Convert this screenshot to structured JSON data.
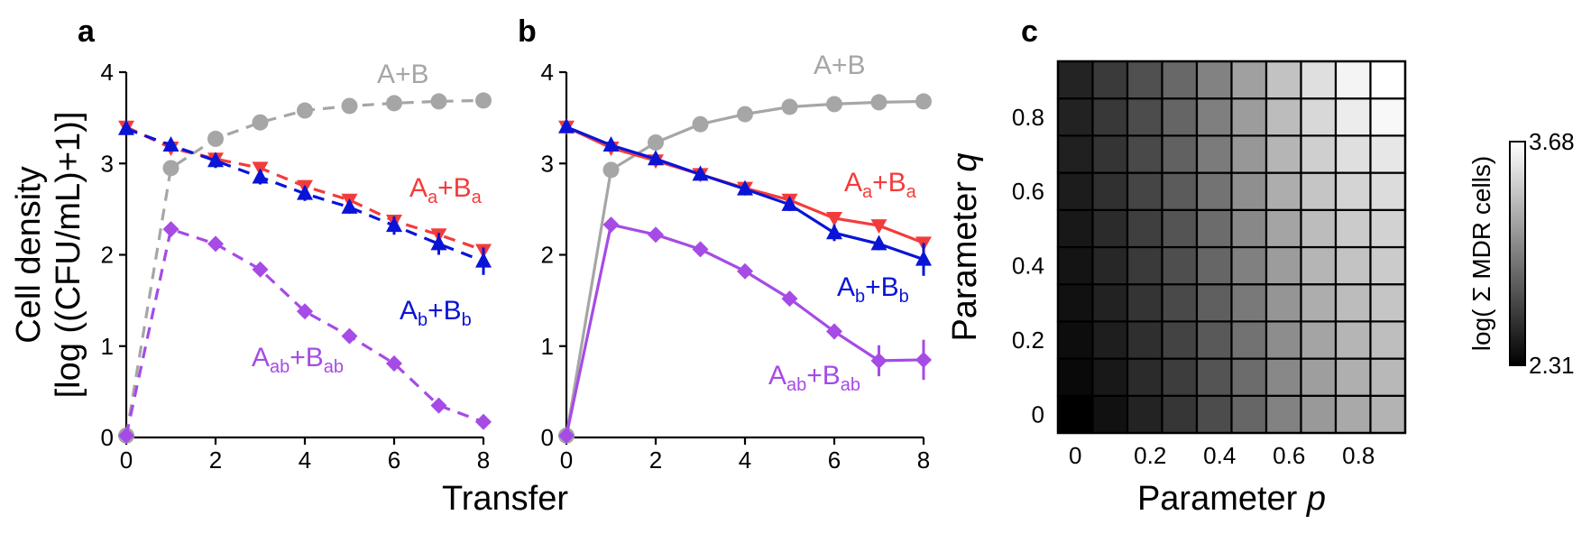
{
  "chart_data": [
    {
      "panel": "a",
      "type": "line",
      "line_style": "dashed",
      "xlabel": "Transfer",
      "ylabel": [
        "Cell density",
        "[log ((CFU/mL)+1)]"
      ],
      "xlim": [
        0,
        8
      ],
      "ylim": [
        0,
        4
      ],
      "xticks": [
        "0",
        "2",
        "4",
        "6",
        "8"
      ],
      "yticks": [
        "0",
        "1",
        "2",
        "3",
        "4"
      ],
      "x": [
        0,
        1,
        2,
        3,
        4,
        5,
        6,
        7,
        8
      ],
      "series": [
        {
          "name": "A+B",
          "base": "A+B",
          "s1": "",
          "mid": "",
          "s2": "",
          "color": "#a6a6a6",
          "marker": "circle",
          "values": [
            0.02,
            2.95,
            3.27,
            3.45,
            3.58,
            3.63,
            3.66,
            3.68,
            3.69
          ],
          "err": [
            0,
            0,
            0,
            0,
            0,
            0,
            0,
            0,
            0
          ]
        },
        {
          "name": "Aa+Ba",
          "base": "A",
          "s1": "a",
          "mid": "+B",
          "s2": "a",
          "color": "#f23c3c",
          "marker": "triangle-down",
          "values": [
            3.4,
            3.17,
            3.05,
            2.95,
            2.75,
            2.6,
            2.37,
            2.22,
            2.05
          ],
          "err": [
            0,
            0,
            0,
            0,
            0,
            0,
            0,
            0,
            0
          ]
        },
        {
          "name": "Ab+Bb",
          "base": "A",
          "s1": "b",
          "mid": "+B",
          "s2": "b",
          "color": "#0a14d6",
          "marker": "triangle-up",
          "values": [
            3.38,
            3.2,
            3.03,
            2.85,
            2.67,
            2.52,
            2.32,
            2.12,
            1.93
          ],
          "err": [
            0,
            0.06,
            0.08,
            0.08,
            0.08,
            0.07,
            0.1,
            0.12,
            0.15
          ]
        },
        {
          "name": "Aab+Bab",
          "base": "A",
          "s1": "ab",
          "mid": "+B",
          "s2": "ab",
          "color": "#a64be6",
          "marker": "diamond",
          "values": [
            0.02,
            2.28,
            2.12,
            1.84,
            1.38,
            1.11,
            0.81,
            0.35,
            0.17
          ],
          "err": [
            0,
            0,
            0,
            0,
            0,
            0,
            0.08,
            0,
            0
          ]
        }
      ]
    },
    {
      "panel": "b",
      "type": "line",
      "line_style": "solid",
      "xlim": [
        0,
        8
      ],
      "ylim": [
        0,
        4
      ],
      "xticks": [
        "0",
        "2",
        "4",
        "6",
        "8"
      ],
      "yticks": [
        "0",
        "1",
        "2",
        "3",
        "4"
      ],
      "x": [
        0,
        1,
        2,
        3,
        4,
        5,
        6,
        7,
        8
      ],
      "series": [
        {
          "name": "A+B",
          "base": "A+B",
          "s1": "",
          "mid": "",
          "s2": "",
          "color": "#a6a6a6",
          "marker": "circle",
          "values": [
            0.02,
            2.93,
            3.23,
            3.43,
            3.54,
            3.62,
            3.65,
            3.67,
            3.68
          ],
          "err": [
            0,
            0,
            0,
            0,
            0,
            0,
            0,
            0,
            0
          ]
        },
        {
          "name": "Aa+Ba",
          "base": "A",
          "s1": "a",
          "mid": "+B",
          "s2": "a",
          "color": "#f23c3c",
          "marker": "triangle-down",
          "values": [
            3.4,
            3.17,
            3.03,
            2.88,
            2.73,
            2.6,
            2.4,
            2.32,
            2.13
          ],
          "err": [
            0,
            0,
            0,
            0,
            0,
            0,
            0,
            0.05,
            0
          ]
        },
        {
          "name": "Ab+Bb",
          "base": "A",
          "s1": "b",
          "mid": "+B",
          "s2": "b",
          "color": "#0a14d6",
          "marker": "triangle-up",
          "values": [
            3.4,
            3.2,
            3.05,
            2.88,
            2.72,
            2.55,
            2.24,
            2.12,
            1.95
          ],
          "err": [
            0,
            0,
            0,
            0,
            0,
            0.07,
            0.09,
            0.07,
            0.18
          ]
        },
        {
          "name": "Aab+Bab",
          "base": "A",
          "s1": "ab",
          "mid": "+B",
          "s2": "ab",
          "color": "#a64be6",
          "marker": "diamond",
          "values": [
            0.02,
            2.33,
            2.22,
            2.06,
            1.82,
            1.52,
            1.16,
            0.84,
            0.85
          ],
          "err": [
            0,
            0,
            0,
            0,
            0,
            0,
            0.08,
            0.17,
            0.22
          ]
        }
      ]
    },
    {
      "panel": "c",
      "type": "heatmap",
      "xlabel_text": "Parameter ",
      "xlabel_var": "p",
      "ylabel_text": "Parameter ",
      "ylabel_var": "q",
      "xticks": [
        "0",
        "0.2",
        "0.4",
        "0.6",
        "0.8"
      ],
      "yticks": [
        "0",
        "0.2",
        "0.4",
        "0.6",
        "0.8"
      ],
      "colorbar": {
        "label": "log( Σ MDR cells)",
        "min": "2.31",
        "max": "3.68",
        "vmin": 2.31,
        "vmax": 3.68
      },
      "rows": 10,
      "cols": 10,
      "values": [
        [
          2.31,
          2.4,
          2.5,
          2.6,
          2.72,
          2.86,
          3.01,
          3.13,
          3.22,
          3.27
        ],
        [
          2.36,
          2.44,
          2.54,
          2.64,
          2.76,
          2.89,
          3.04,
          3.16,
          3.25,
          3.3
        ],
        [
          2.38,
          2.47,
          2.56,
          2.67,
          2.79,
          2.92,
          3.07,
          3.19,
          3.28,
          3.33
        ],
        [
          2.4,
          2.49,
          2.59,
          2.7,
          2.82,
          2.96,
          3.11,
          3.24,
          3.32,
          3.37
        ],
        [
          2.42,
          2.52,
          2.62,
          2.73,
          2.86,
          3.0,
          3.15,
          3.28,
          3.36,
          3.4
        ],
        [
          2.44,
          2.54,
          2.65,
          2.76,
          2.89,
          3.04,
          3.19,
          3.32,
          3.4,
          3.44
        ],
        [
          2.46,
          2.57,
          2.68,
          2.8,
          2.93,
          3.08,
          3.24,
          3.37,
          3.45,
          3.49
        ],
        [
          2.48,
          2.59,
          2.7,
          2.83,
          2.97,
          3.12,
          3.28,
          3.42,
          3.51,
          3.55
        ],
        [
          2.49,
          2.61,
          2.72,
          2.85,
          2.99,
          3.15,
          3.32,
          3.47,
          3.58,
          3.64
        ],
        [
          2.5,
          2.62,
          2.74,
          2.87,
          3.01,
          3.17,
          3.35,
          3.51,
          3.62,
          3.68
        ]
      ]
    }
  ]
}
